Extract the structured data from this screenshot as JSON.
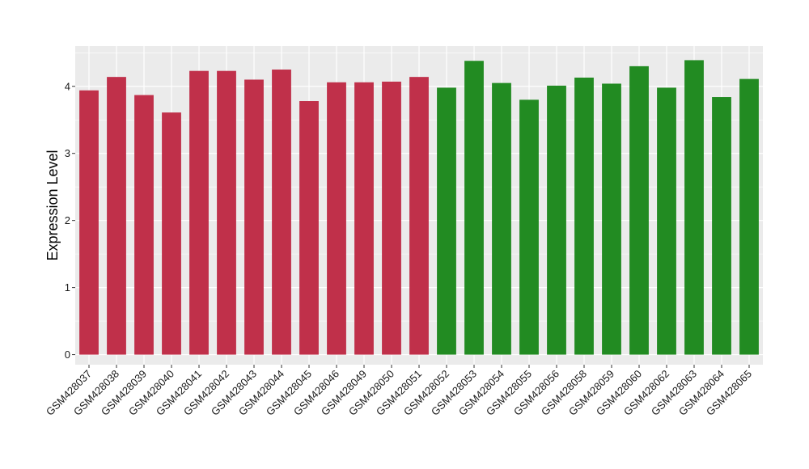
{
  "chart_data": {
    "type": "bar",
    "title": "",
    "xlabel": "",
    "ylabel": "Expression Level",
    "ylim": [
      -0.15,
      4.6
    ],
    "yticks": [
      0,
      1,
      2,
      3,
      4
    ],
    "grid": true,
    "legend": "none",
    "categories": [
      "GSM428037",
      "GSM428038",
      "GSM428039",
      "GSM428040",
      "GSM428041",
      "GSM428042",
      "GSM428043",
      "GSM428044",
      "GSM428045",
      "GSM428046",
      "GSM428049",
      "GSM428050",
      "GSM428051",
      "GSM428052",
      "GSM428053",
      "GSM428054",
      "GSM428055",
      "GSM428056",
      "GSM428058",
      "GSM428059",
      "GSM428060",
      "GSM428062",
      "GSM428063",
      "GSM428064",
      "GSM428065"
    ],
    "values": [
      3.94,
      4.14,
      3.87,
      3.61,
      4.23,
      4.23,
      4.1,
      4.25,
      3.78,
      4.06,
      4.06,
      4.07,
      4.14,
      3.98,
      4.38,
      4.05,
      3.8,
      4.01,
      4.13,
      4.04,
      4.3,
      3.98,
      4.39,
      3.84,
      4.11
    ],
    "groups": [
      "red",
      "red",
      "red",
      "red",
      "red",
      "red",
      "red",
      "red",
      "red",
      "red",
      "red",
      "red",
      "red",
      "green",
      "green",
      "green",
      "green",
      "green",
      "green",
      "green",
      "green",
      "green",
      "green",
      "green",
      "green"
    ],
    "colors": {
      "red": "#C0304A",
      "green": "#228B22",
      "panel": "#EBEBEB",
      "grid": "#FFFFFF"
    }
  }
}
